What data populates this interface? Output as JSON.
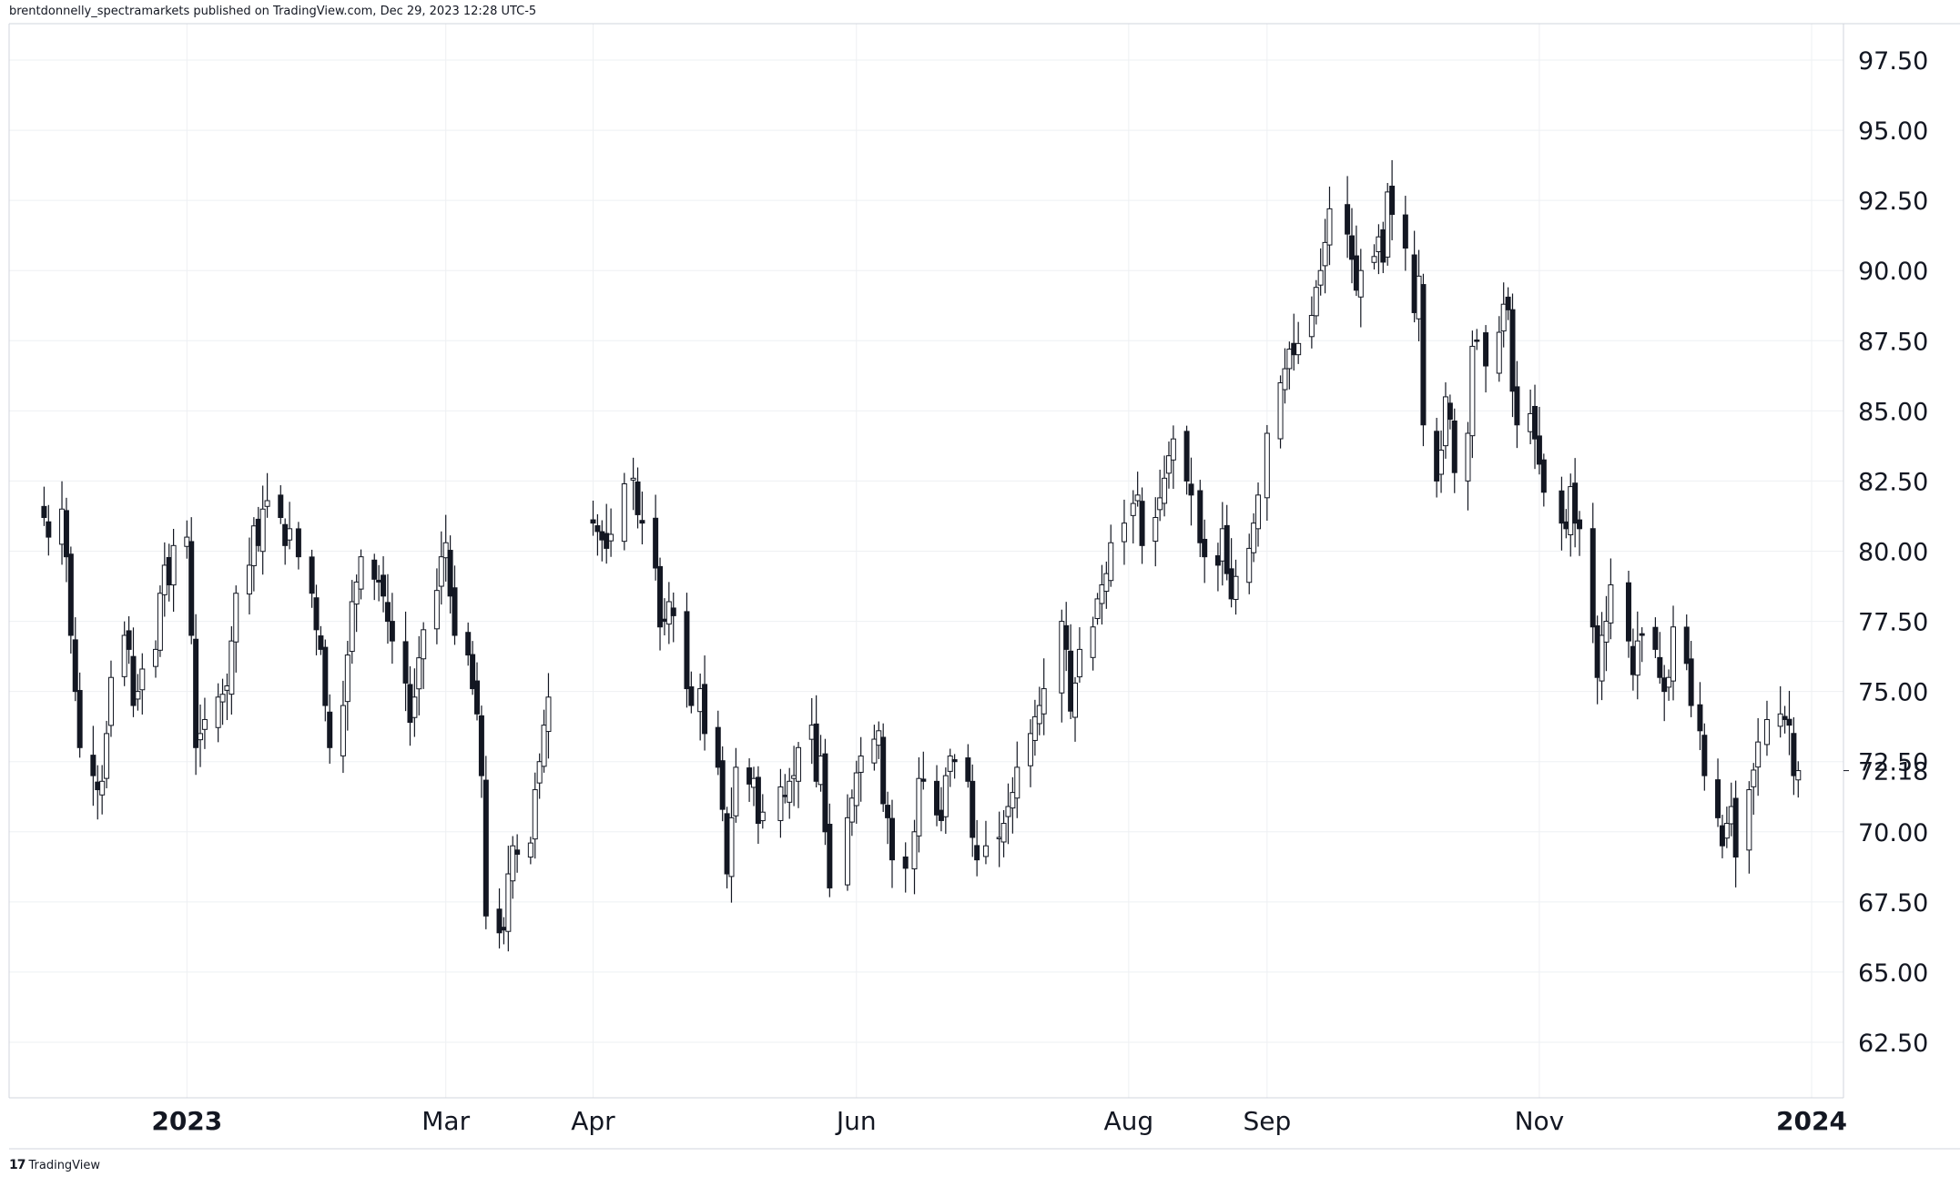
{
  "header": {
    "text": "brentdonnelly_spectramarkets published on TradingView.com, Dec 29, 2023 12:28 UTC-5"
  },
  "footer": {
    "logo_glyph": "17",
    "brand": "TradingView"
  },
  "colors": {
    "up_body": "#ffffff",
    "down_body": "#131722",
    "wick": "#131722",
    "grid": "#eef0f3",
    "axis_line": "#d1d4dc",
    "text": "#131722"
  },
  "chart_data": {
    "type": "candlestick",
    "title": "",
    "xlabel": "",
    "ylabel": "",
    "ylim": [
      60,
      99
    ],
    "y_ticks": [
      "62.50",
      "65.00",
      "67.50",
      "70.00",
      "72.50",
      "75.00",
      "77.50",
      "80.00",
      "82.50",
      "85.00",
      "87.50",
      "90.00",
      "92.50",
      "95.00",
      "97.50"
    ],
    "last_price": "72.18",
    "x_range": [
      "2022-12-01",
      "2024-01-02"
    ],
    "x_ticks": [
      {
        "label": "2023",
        "date": "2023-01-02",
        "bold": true
      },
      {
        "label": "Mar",
        "date": "2023-03-01",
        "bold": false
      },
      {
        "label": "Apr",
        "date": "2023-04-03",
        "bold": false
      },
      {
        "label": "Jun",
        "date": "2023-06-01",
        "bold": false
      },
      {
        "label": "Aug",
        "date": "2023-08-01",
        "bold": false
      },
      {
        "label": "Sep",
        "date": "2023-09-01",
        "bold": false
      },
      {
        "label": "Nov",
        "date": "2023-11-01",
        "bold": false
      },
      {
        "label": "2024",
        "date": "2024-01-01",
        "bold": true
      }
    ],
    "segments": [
      {
        "start": "2022-12-01",
        "end": "2023-03-24",
        "closes": [
          81.2,
          80.5,
          81.5,
          79.8,
          77.0,
          75.0,
          73.0,
          72.0,
          71.5,
          71.8,
          73.5,
          75.5,
          77.0,
          76.5,
          74.5,
          75.0,
          75.8,
          76.5,
          78.5,
          79.5,
          78.8,
          80.2,
          80.5,
          77.0,
          73.0,
          73.5,
          74.0,
          74.8,
          74.9,
          75.2,
          76.8,
          78.5,
          79.5,
          80.9,
          80.2,
          81.5,
          81.8,
          81.2,
          80.2,
          80.8,
          79.8,
          78.5,
          77.2,
          76.5,
          74.5,
          73.0,
          74.5,
          76.3,
          78.2,
          78.9,
          79.8,
          79.0,
          78.9,
          78.4,
          77.5,
          76.8,
          75.3,
          73.9,
          74.8,
          76.2,
          77.2,
          78.6,
          79.8,
          80.3,
          78.4,
          77.0,
          76.3,
          75.1,
          74.2,
          72.0,
          67.0,
          66.4,
          66.5,
          68.5,
          69.5,
          69.2,
          69.6,
          71.5,
          72.5,
          73.8,
          74.8
        ]
      },
      {
        "start": "2023-04-03",
        "end": "2023-12-29",
        "closes": [
          81.0,
          80.7,
          80.4,
          80.1,
          80.6,
          82.4,
          82.6,
          81.3,
          81.0,
          79.4,
          77.3,
          77.5,
          78.2,
          77.7,
          75.1,
          74.5,
          75.1,
          73.5,
          72.3,
          70.8,
          68.5,
          70.5,
          72.3,
          71.7,
          71.9,
          70.3,
          70.7,
          71.6,
          71.3,
          71.8,
          72.0,
          73.0,
          73.8,
          71.8,
          72.7,
          70.0,
          68.0,
          70.5,
          71.2,
          72.1,
          72.7,
          73.3,
          73.6,
          71.0,
          70.5,
          69.0,
          68.7,
          70.0,
          71.9,
          71.8,
          70.6,
          70.4,
          72.0,
          72.7,
          72.5,
          71.8,
          69.8,
          69.0,
          69.5,
          69.8,
          70.3,
          70.9,
          71.4,
          72.3,
          73.5,
          74.1,
          74.5,
          75.1,
          77.5,
          76.5,
          74.3,
          75.3,
          76.5,
          77.3,
          78.3,
          78.8,
          79.2,
          80.3,
          81.0,
          81.7,
          82.0,
          80.2,
          81.2,
          81.9,
          82.6,
          83.4,
          84.0,
          82.5,
          82.0,
          80.3,
          79.8,
          79.5,
          80.8,
          79.2,
          78.3,
          79.1,
          80.1,
          81.0,
          82.0,
          84.2,
          86.0,
          86.5,
          87.2,
          87.0,
          87.4,
          88.4,
          89.4,
          90.0,
          91.0,
          92.2,
          91.3,
          90.4,
          89.3,
          90.0,
          90.5,
          91.2,
          90.3,
          92.8,
          92.0,
          90.8,
          88.5,
          89.8,
          84.5,
          82.5,
          83.6,
          85.5,
          84.7,
          82.8,
          84.2,
          87.3,
          87.5,
          86.6,
          87.8,
          88.8,
          88.6,
          85.7,
          84.5,
          84.9,
          84.0,
          83.1,
          82.1,
          81.0,
          80.8,
          82.3,
          81.0,
          80.8,
          77.3,
          75.5,
          77.0,
          77.5,
          78.8,
          76.8,
          75.6,
          76.8,
          77.0,
          76.5,
          75.5,
          75.0,
          75.5,
          77.3,
          76.0,
          74.5,
          73.6,
          72.0,
          70.5,
          69.5,
          70.3,
          70.9,
          69.1,
          71.5,
          72.2,
          73.2,
          74.0,
          74.2,
          74.0,
          73.8,
          72.0,
          72.18
        ]
      }
    ]
  }
}
